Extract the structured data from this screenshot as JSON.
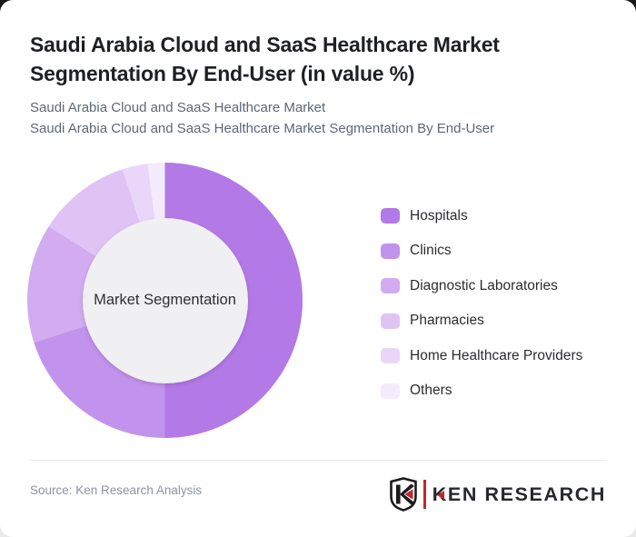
{
  "card": {
    "title_line1": "Saudi Arabia Cloud and SaaS Healthcare Market",
    "title_line2": "Segmentation By End-User (in value %)",
    "subtitle_line1": "Saudi Arabia Cloud and SaaS Healthcare Market",
    "subtitle_line2": "Saudi Arabia Cloud and SaaS Healthcare Market Segmentation By End-User"
  },
  "chart_data": {
    "type": "pie",
    "subtype": "donut",
    "title": "Saudi Arabia Cloud and SaaS Healthcare Market Segmentation By End-User (in value %)",
    "center_label": "Market Segmentation",
    "unit": "% of value",
    "start_angle_deg": 0,
    "direction": "clockwise",
    "legend_position": "right",
    "categories": [
      "Hospitals",
      "Clinics",
      "Diagnostic Laboratories",
      "Pharmacies",
      "Home Healthcare Providers",
      "Others"
    ],
    "values": [
      50,
      20,
      14,
      11,
      3,
      2
    ],
    "colors": [
      "#b379e7",
      "#c293ec",
      "#d2abf0",
      "#dfc3f5",
      "#e9d6f9",
      "#f4ebfd"
    ],
    "hole_color": "#f0eff1"
  },
  "footer": {
    "source": "Source: Ken Research Analysis",
    "logo_text_k": "K",
    "logo_text_rest": "EN RESEARCH"
  }
}
